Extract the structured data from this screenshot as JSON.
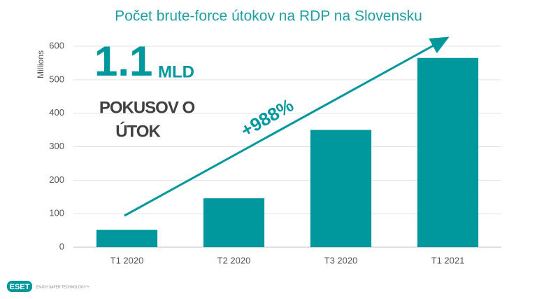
{
  "chart_data": {
    "type": "bar",
    "title": "Počet brute-force útokov na RDP na Slovensku",
    "y_label": "Millions",
    "categories": [
      "T1 2020",
      "T2 2020",
      "T3 2020",
      "T1 2021"
    ],
    "values": [
      52,
      146,
      350,
      565
    ],
    "color": "#00979d",
    "ylim": [
      0,
      600
    ],
    "yticks": [
      0,
      100,
      200,
      300,
      400,
      500,
      600
    ],
    "grid": true,
    "annotations": {
      "big_number": "1.1",
      "big_unit": "MLD",
      "caption_lines": [
        "POKUSOV O",
        "ÚTOK"
      ],
      "growth": "+988%"
    }
  },
  "logo": {
    "text": "ESET",
    "tagline": "ENJOY SAFER TECHNOLOGY™"
  }
}
